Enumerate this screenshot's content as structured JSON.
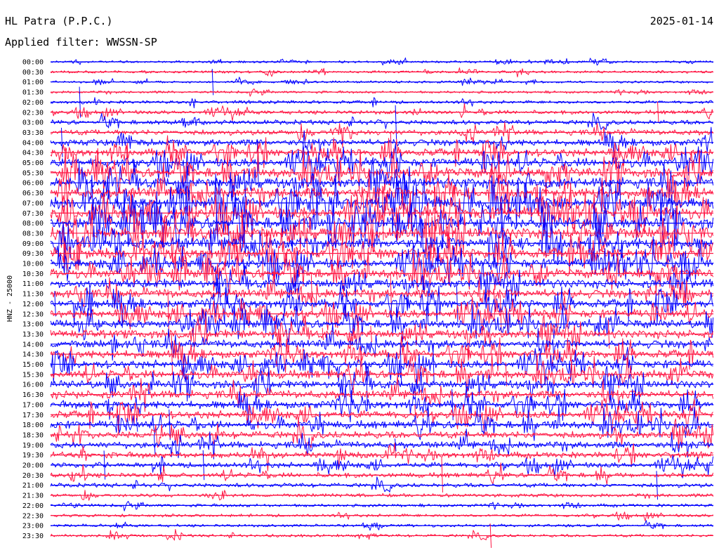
{
  "header": {
    "station": "HL Patra (P.P.C.)",
    "date": "2025-01-14",
    "filter_label": "Applied filter: WWSSN-SP"
  },
  "chart_data": {
    "type": "line",
    "title": "HL Patra (P.P.C.)",
    "subtitle": "Applied filter: WWSSN-SP",
    "date": "2025-01-14",
    "ylabel": "HNZ - 25000",
    "xlabel": "",
    "trace_colors": [
      "#0000ff",
      "#ff1744"
    ],
    "rows": [
      {
        "label": "00:00",
        "activity": 0.1
      },
      {
        "label": "00:30",
        "activity": 0.12
      },
      {
        "label": "01:00",
        "activity": 0.1
      },
      {
        "label": "01:30",
        "activity": 0.12
      },
      {
        "label": "02:00",
        "activity": 0.18
      },
      {
        "label": "02:30",
        "activity": 0.25
      },
      {
        "label": "03:00",
        "activity": 0.32
      },
      {
        "label": "03:30",
        "activity": 0.4
      },
      {
        "label": "04:00",
        "activity": 0.5
      },
      {
        "label": "04:30",
        "activity": 0.6
      },
      {
        "label": "05:00",
        "activity": 0.72
      },
      {
        "label": "05:30",
        "activity": 0.8
      },
      {
        "label": "06:00",
        "activity": 0.85
      },
      {
        "label": "06:30",
        "activity": 0.92
      },
      {
        "label": "07:00",
        "activity": 1.0
      },
      {
        "label": "07:30",
        "activity": 1.0
      },
      {
        "label": "08:00",
        "activity": 1.0
      },
      {
        "label": "08:30",
        "activity": 1.0
      },
      {
        "label": "09:00",
        "activity": 0.95
      },
      {
        "label": "09:30",
        "activity": 0.85
      },
      {
        "label": "10:00",
        "activity": 0.8
      },
      {
        "label": "10:30",
        "activity": 0.75
      },
      {
        "label": "11:00",
        "activity": 0.72
      },
      {
        "label": "11:30",
        "activity": 0.7
      },
      {
        "label": "12:00",
        "activity": 0.7
      },
      {
        "label": "12:30",
        "activity": 0.68
      },
      {
        "label": "13:00",
        "activity": 0.68
      },
      {
        "label": "13:30",
        "activity": 0.66
      },
      {
        "label": "14:00",
        "activity": 0.66
      },
      {
        "label": "14:30",
        "activity": 0.65
      },
      {
        "label": "15:00",
        "activity": 0.65
      },
      {
        "label": "15:30",
        "activity": 0.64
      },
      {
        "label": "16:00",
        "activity": 0.64
      },
      {
        "label": "16:30",
        "activity": 0.63
      },
      {
        "label": "17:00",
        "activity": 0.62
      },
      {
        "label": "17:30",
        "activity": 0.6
      },
      {
        "label": "18:00",
        "activity": 0.6
      },
      {
        "label": "18:30",
        "activity": 0.56
      },
      {
        "label": "19:00",
        "activity": 0.52
      },
      {
        "label": "19:30",
        "activity": 0.46
      },
      {
        "label": "20:00",
        "activity": 0.4
      },
      {
        "label": "20:30",
        "activity": 0.34
      },
      {
        "label": "21:00",
        "activity": 0.28
      },
      {
        "label": "21:30",
        "activity": 0.22
      },
      {
        "label": "22:00",
        "activity": 0.18
      },
      {
        "label": "22:30",
        "activity": 0.16
      },
      {
        "label": "23:00",
        "activity": 0.15
      },
      {
        "label": "23:30",
        "activity": 0.15
      }
    ],
    "grid": false,
    "legend": "none"
  }
}
